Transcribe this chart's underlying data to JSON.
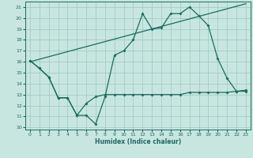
{
  "xlabel": "Humidex (Indice chaleur)",
  "bg_color": "#c8e6e0",
  "grid_color": "#9ac8c0",
  "line_color": "#1a6b60",
  "xlim": [
    -0.5,
    23.5
  ],
  "ylim": [
    9.8,
    21.5
  ],
  "xticks": [
    0,
    1,
    2,
    3,
    4,
    5,
    6,
    7,
    8,
    9,
    10,
    11,
    12,
    13,
    14,
    15,
    16,
    17,
    18,
    19,
    20,
    21,
    22,
    23
  ],
  "yticks": [
    10,
    11,
    12,
    13,
    14,
    15,
    16,
    17,
    18,
    19,
    20,
    21
  ],
  "line1_x": [
    0,
    1,
    2,
    3,
    4,
    5,
    6,
    7,
    8,
    9,
    10,
    11,
    12,
    13,
    14,
    15,
    16,
    17,
    18,
    19,
    20,
    21,
    22,
    23
  ],
  "line1_y": [
    16.1,
    15.4,
    14.6,
    12.7,
    12.7,
    11.1,
    11.1,
    10.3,
    12.8,
    16.6,
    17.0,
    18.0,
    20.4,
    19.0,
    19.1,
    20.4,
    20.4,
    21.0,
    20.2,
    19.3,
    16.3,
    14.5,
    13.3,
    13.4
  ],
  "line2_x": [
    0,
    23
  ],
  "line2_y": [
    16.0,
    21.3
  ],
  "line3_x": [
    0,
    1,
    2,
    3,
    4,
    5,
    6,
    7,
    8,
    9,
    10,
    11,
    12,
    13,
    14,
    15,
    16,
    17,
    18,
    19,
    20,
    21,
    22,
    23
  ],
  "line3_y": [
    16.1,
    15.4,
    14.6,
    12.7,
    12.7,
    11.1,
    12.2,
    12.8,
    13.0,
    13.0,
    13.0,
    13.0,
    13.0,
    13.0,
    13.0,
    13.0,
    13.0,
    13.2,
    13.2,
    13.2,
    13.2,
    13.2,
    13.3,
    13.3
  ]
}
